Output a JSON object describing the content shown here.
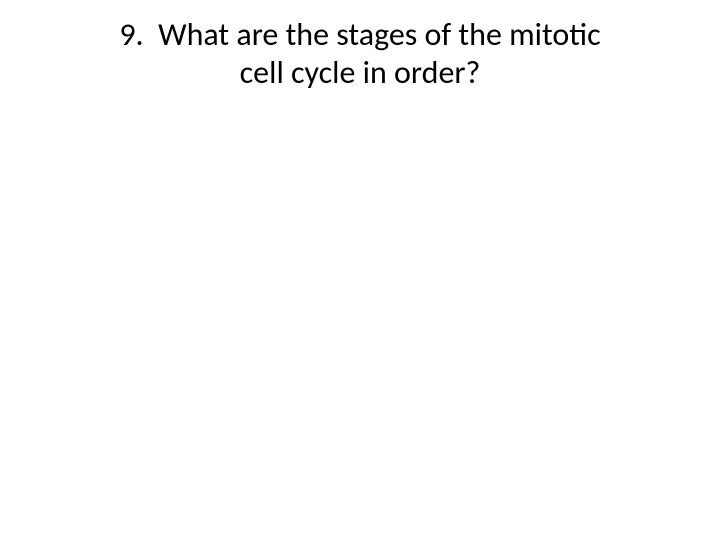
{
  "slide": {
    "number": "9.",
    "title_line1": "What are the stages of the mitotic",
    "title_line2": "cell cycle in order?",
    "background_color": "#ffffff",
    "text_color": "#000000",
    "font_family": "Calibri",
    "title_fontsize": 32
  }
}
